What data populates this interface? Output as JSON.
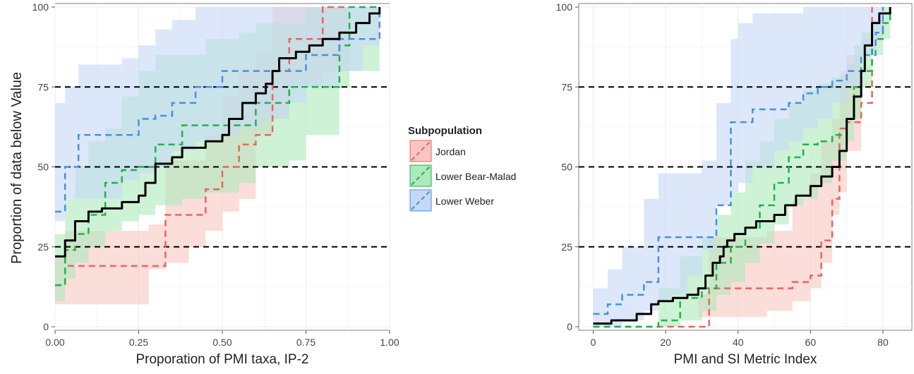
{
  "legend": {
    "title": "Subpopulation",
    "items": [
      {
        "label": "Jordan",
        "color": "#e8665d",
        "fill": "#f8c6c2"
      },
      {
        "label": "Lower Bear-Malad",
        "color": "#22b14c",
        "fill": "#aee9bb"
      },
      {
        "label": "Lower Weber",
        "color": "#4a8fe0",
        "fill": "#c4d9f6"
      }
    ]
  },
  "chart_data": [
    {
      "type": "line",
      "xlabel": "Proporation of PMI taxa, IP-2",
      "ylabel": "Proportion of data below Value",
      "xlim": [
        0,
        1
      ],
      "ylim": [
        0,
        100
      ],
      "xticks": [
        "0.00",
        "0.25",
        "0.50",
        "0.75",
        "1.00"
      ],
      "xtick_values": [
        0,
        0.25,
        0.5,
        0.75,
        1
      ],
      "yticks": [
        "0",
        "25",
        "50",
        "75",
        "100"
      ],
      "ytick_values": [
        0,
        25,
        50,
        75,
        100
      ],
      "reference_lines": [
        25,
        50,
        75
      ],
      "grid": true,
      "overall": {
        "color": "#000000",
        "x": [
          0.0,
          0.03,
          0.06,
          0.1,
          0.14,
          0.2,
          0.25,
          0.27,
          0.3,
          0.35,
          0.38,
          0.45,
          0.5,
          0.52,
          0.56,
          0.6,
          0.63,
          0.65,
          0.67,
          0.72,
          0.76,
          0.8,
          0.85,
          0.9,
          0.94,
          0.97
        ],
        "y": [
          22,
          27,
          33,
          36,
          37,
          39,
          41,
          45,
          51,
          53,
          56,
          58,
          60,
          65,
          70,
          73,
          76,
          80,
          84,
          86,
          88,
          90,
          92,
          95,
          98,
          100
        ]
      },
      "series": [
        {
          "name": "Jordan",
          "x": [
            0.0,
            0.03,
            0.1,
            0.2,
            0.28,
            0.33,
            0.4,
            0.45,
            0.5,
            0.55,
            0.6,
            0.65,
            0.7,
            0.8,
            0.88
          ],
          "y": [
            13,
            19,
            19,
            19,
            19,
            35,
            35,
            43,
            50,
            57,
            60,
            80,
            90,
            100,
            100
          ],
          "upper": [
            22,
            30,
            30,
            30,
            32,
            52,
            52,
            60,
            72,
            80,
            86,
            100,
            100,
            100,
            100
          ],
          "lower": [
            4,
            7,
            7,
            7,
            7,
            18,
            20,
            25,
            30,
            36,
            40,
            60,
            65,
            75,
            80
          ]
        },
        {
          "name": "Lower Bear-Malad",
          "x": [
            0.0,
            0.03,
            0.06,
            0.1,
            0.15,
            0.2,
            0.25,
            0.3,
            0.38,
            0.45,
            0.55,
            0.6,
            0.7,
            0.75,
            0.85,
            0.88,
            0.97
          ],
          "y": [
            13,
            24,
            29,
            35,
            45,
            49,
            50,
            57,
            63,
            63,
            63,
            70,
            75,
            75,
            88,
            100,
            100
          ],
          "upper": [
            29,
            40,
            50,
            58,
            62,
            72,
            80,
            85,
            85,
            90,
            92,
            95,
            95,
            100,
            100,
            100,
            100
          ],
          "lower": [
            0,
            8,
            15,
            20,
            25,
            30,
            33,
            35,
            38,
            40,
            42,
            45,
            50,
            52,
            60,
            75,
            80
          ]
        },
        {
          "name": "Lower Weber",
          "x": [
            0.0,
            0.03,
            0.07,
            0.12,
            0.2,
            0.25,
            0.3,
            0.35,
            0.42,
            0.5,
            0.55,
            0.62,
            0.7,
            0.75,
            0.85,
            0.92,
            0.97
          ],
          "y": [
            36,
            50,
            60,
            60,
            60,
            65,
            66,
            70,
            75,
            80,
            80,
            80,
            80,
            85,
            90,
            90,
            100
          ],
          "upper": [
            70,
            75,
            82,
            82,
            84,
            88,
            93,
            96,
            100,
            100,
            100,
            100,
            100,
            100,
            100,
            100,
            100
          ],
          "lower": [
            28,
            33,
            40,
            40,
            40,
            46,
            48,
            50,
            55,
            58,
            60,
            62,
            65,
            70,
            75,
            80,
            88
          ]
        }
      ]
    },
    {
      "type": "line",
      "xlabel": "PMI and SI Metric Index",
      "ylabel": "",
      "xlim": [
        -4,
        88
      ],
      "ylim": [
        0,
        100
      ],
      "xticks": [
        "0",
        "20",
        "40",
        "60",
        "80"
      ],
      "xtick_values": [
        0,
        20,
        40,
        60,
        80
      ],
      "yticks": [
        "0",
        "25",
        "50",
        "75",
        "100"
      ],
      "ytick_values": [
        0,
        25,
        50,
        75,
        100
      ],
      "reference_lines": [
        25,
        50,
        75
      ],
      "grid": true,
      "overall": {
        "color": "#000000",
        "x": [
          0,
          5,
          12,
          16,
          18,
          22,
          26,
          29,
          31,
          33,
          35,
          36,
          37,
          39,
          42,
          45,
          50,
          53,
          56,
          60,
          63,
          66,
          68,
          70,
          72,
          74,
          75,
          77,
          79,
          82
        ],
        "y": [
          1,
          2,
          4,
          7,
          8,
          9,
          10,
          12,
          16,
          20,
          22,
          25,
          27,
          29,
          31,
          33,
          35,
          38,
          41,
          44,
          47,
          50,
          55,
          65,
          72,
          80,
          88,
          95,
          98,
          100
        ]
      },
      "series": [
        {
          "name": "Jordan",
          "x": [
            0,
            18,
            29,
            32,
            36,
            40,
            48,
            55,
            60,
            63,
            66,
            68,
            70,
            74,
            77
          ],
          "y": [
            0,
            0,
            0,
            12,
            12,
            12,
            12,
            14,
            16,
            27,
            40,
            62,
            64,
            70,
            100
          ],
          "upper": [
            0,
            0,
            10,
            28,
            28,
            28,
            30,
            40,
            48,
            58,
            65,
            80,
            85,
            90,
            100
          ],
          "lower": [
            0,
            0,
            0,
            3,
            3,
            3,
            3,
            5,
            8,
            12,
            20,
            35,
            42,
            55,
            88
          ]
        },
        {
          "name": "Lower Bear-Malad",
          "x": [
            0,
            14,
            18,
            24,
            30,
            34,
            38,
            42,
            46,
            50,
            54,
            58,
            62,
            66,
            70,
            72,
            74,
            77,
            80,
            82
          ],
          "y": [
            0,
            0,
            2,
            9,
            12,
            20,
            25,
            31,
            38,
            45,
            53,
            57,
            58,
            60,
            65,
            75,
            80,
            90,
            95,
            100
          ],
          "upper": [
            0,
            0,
            12,
            22,
            28,
            35,
            42,
            52,
            58,
            65,
            70,
            74,
            76,
            78,
            82,
            88,
            92,
            96,
            100,
            100
          ],
          "lower": [
            0,
            0,
            0,
            0,
            2,
            5,
            10,
            14,
            20,
            26,
            32,
            38,
            40,
            45,
            52,
            58,
            65,
            75,
            85,
            90
          ]
        },
        {
          "name": "Lower Weber",
          "x": [
            0,
            4,
            8,
            14,
            18,
            22,
            26,
            30,
            34,
            38,
            40,
            44,
            50,
            54,
            58,
            62,
            66,
            70,
            74,
            78,
            80
          ],
          "y": [
            4,
            7,
            10,
            14,
            28,
            28,
            28,
            28,
            38,
            64,
            64,
            68,
            68,
            70,
            73,
            75,
            77,
            80,
            85,
            92,
            100
          ],
          "upper": [
            12,
            18,
            25,
            40,
            48,
            48,
            48,
            52,
            70,
            90,
            95,
            98,
            98,
            98,
            100,
            100,
            100,
            100,
            100,
            100,
            100
          ],
          "lower": [
            0,
            0,
            0,
            2,
            5,
            8,
            10,
            16,
            24,
            38,
            42,
            45,
            50,
            55,
            58,
            62,
            65,
            70,
            75,
            85,
            90
          ]
        }
      ]
    }
  ]
}
